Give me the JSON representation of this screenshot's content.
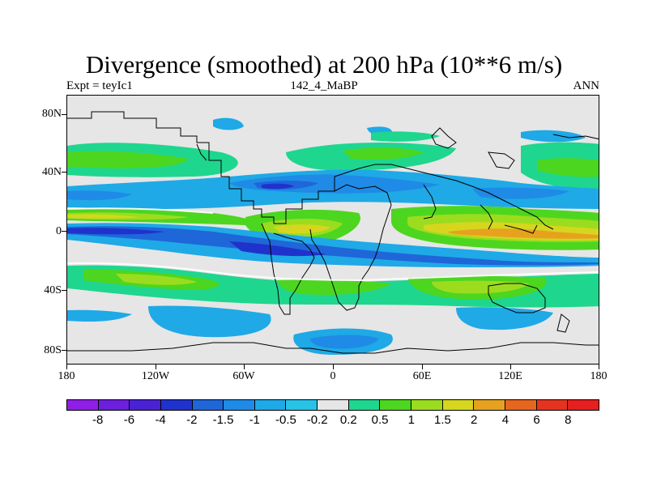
{
  "title": "Divergence (smoothed) at 200 hPa (10**6 m/s)",
  "subtitle_left": "Expt = teyIc1",
  "subtitle_center": "142_4_MaBP",
  "subtitle_right": "ANN",
  "y_labels": [
    "80N",
    "40N",
    "0",
    "40S",
    "80S"
  ],
  "x_labels": [
    "180",
    "120W",
    "60W",
    "0",
    "60E",
    "120E",
    "180"
  ],
  "legend": {
    "labels": [
      "-8",
      "-6",
      "-4",
      "-2",
      "-1.5",
      "-1",
      "-0.5",
      "-0.2",
      "0.2",
      "0.5",
      "1",
      "1.5",
      "2",
      "4",
      "6",
      "8"
    ],
    "colors": [
      "#8f1fe6",
      "#6c1fdc",
      "#4a22d4",
      "#1f33cc",
      "#1f66d9",
      "#1f8be6",
      "#1fa9e6",
      "#26c3e6",
      "#e6e6e6",
      "#1fd68f",
      "#4dd61f",
      "#9cdc1f",
      "#d6d61f",
      "#e6a21f",
      "#e6661f",
      "#e6331f",
      "#e61f1f"
    ]
  }
}
